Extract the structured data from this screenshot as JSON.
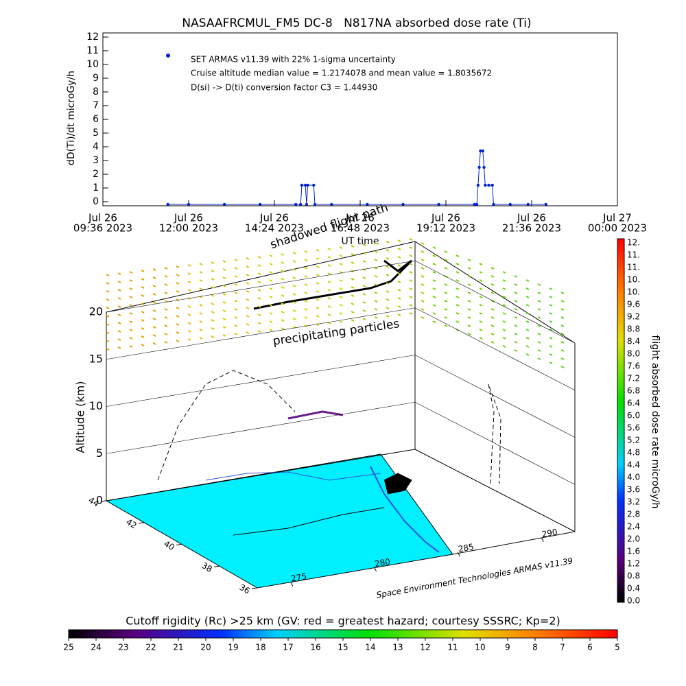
{
  "chart_data": [
    {
      "type": "line",
      "title": "NASAAFRCMUL_FM5 DC-8   N817NA absorbed dose rate (Ti)",
      "ylabel": "dD(Ti)/dt microGy/h",
      "xlabel": "UT time",
      "xlim": [
        "2023-07-26T09:36",
        "2023-07-27T00:00"
      ],
      "xticks": [
        {
          "value": "2023-07-26T09:36",
          "label": [
            "Jul 26",
            "09:36 2023"
          ]
        },
        {
          "value": "2023-07-26T12:00",
          "label": [
            "Jul 26",
            "12:00 2023"
          ]
        },
        {
          "value": "2023-07-26T14:24",
          "label": [
            "Jul 26",
            "14:24 2023"
          ]
        },
        {
          "value": "2023-07-26T16:48",
          "label": [
            "Jul 26",
            "16:48 2023"
          ]
        },
        {
          "value": "2023-07-26T19:12",
          "label": [
            "Jul 26",
            "19:12 2023"
          ]
        },
        {
          "value": "2023-07-26T21:36",
          "label": [
            "Jul 26",
            "21:36 2023"
          ]
        },
        {
          "value": "2023-07-27T00:00",
          "label": [
            "Jul 27",
            "00:00 2023"
          ]
        }
      ],
      "ylim": [
        -0.3,
        12.3
      ],
      "yticks": [
        0,
        1,
        2,
        3,
        4,
        5,
        6,
        7,
        8,
        9,
        10,
        11,
        12
      ],
      "series": [
        {
          "name": "SET ARMAS v11.39 with 22% 1-sigma uncertainty",
          "color": "#0022cc",
          "x": [
            "2023-07-26T11:25",
            "2023-07-26T12:00",
            "2023-07-26T13:00",
            "2023-07-26T14:00",
            "2023-07-26T15:00",
            "2023-07-26T15:08",
            "2023-07-26T15:10",
            "2023-07-26T15:16",
            "2023-07-26T15:18",
            "2023-07-26T15:20",
            "2023-07-26T15:30",
            "2023-07-26T15:32",
            "2023-07-26T16:00",
            "2023-07-26T17:00",
            "2023-07-26T18:00",
            "2023-07-26T19:00",
            "2023-07-26T20:00",
            "2023-07-26T20:04",
            "2023-07-26T20:06",
            "2023-07-26T20:08",
            "2023-07-26T20:10",
            "2023-07-26T20:14",
            "2023-07-26T20:16",
            "2023-07-26T20:18",
            "2023-07-26T20:24",
            "2023-07-26T20:30",
            "2023-07-26T20:32",
            "2023-07-26T21:00",
            "2023-07-26T21:30",
            "2023-07-26T22:00"
          ],
          "values": [
            -0.2,
            -0.2,
            -0.2,
            -0.2,
            -0.2,
            -0.2,
            1.2,
            1.2,
            -0.2,
            1.2,
            1.2,
            -0.2,
            -0.2,
            -0.2,
            -0.2,
            -0.2,
            -0.2,
            -0.2,
            1.2,
            2.5,
            3.7,
            3.7,
            2.5,
            1.2,
            1.2,
            1.2,
            -0.2,
            -0.2,
            -0.2,
            -0.2
          ]
        }
      ],
      "annotations": [
        "Cruise altitude median value = 1.2174078 and mean value = 1.8035672",
        "D(si) -> D(ti) conversion factor C3 = 1.44930"
      ]
    }
  ],
  "scene": {
    "shadow_label": "shadowed flight path",
    "particles_label": "precipitating particles",
    "credit": "Space Environment Technologies ARMAS v11.39",
    "altitude_label": "Altitude (km)",
    "altitude_lim": [
      0,
      20
    ],
    "altitude_ticks": [
      0,
      5,
      10,
      15,
      20
    ],
    "latitude_lim": [
      44,
      36
    ],
    "latitude_ticks": [
      44,
      42,
      40,
      38,
      36
    ],
    "longitude_lim": [
      273,
      292
    ],
    "longitude_ticks": [
      275,
      280,
      285,
      290
    ]
  },
  "dose_colorbar": {
    "title": "flight absorbed dose rate microGy/h",
    "labels": [
      "0.0",
      "0.4",
      "0.8",
      "1.2",
      "1.6",
      "2.0",
      "2.4",
      "2.8",
      "3.2",
      "3.6",
      "4.0",
      "4.4",
      "4.8",
      "5.2",
      "5.6",
      "6.0",
      "6.4",
      "6.8",
      "7.2",
      "7.6",
      "8.0",
      "8.4",
      "8.8",
      "9.2",
      "9.6",
      "10.",
      "10.",
      "11.",
      "11.",
      "12."
    ]
  },
  "rigidity_colorbar": {
    "title": "Cutoff rigidity (Rc) >25 km (GV: red = greatest hazard; courtesy SSSRC; Kp=2)",
    "lim": [
      25,
      5
    ],
    "ticks": [
      25,
      24,
      23,
      22,
      21,
      20,
      19,
      18,
      17,
      16,
      15,
      14,
      13,
      12,
      11,
      10,
      9,
      8,
      7,
      6,
      5
    ]
  }
}
